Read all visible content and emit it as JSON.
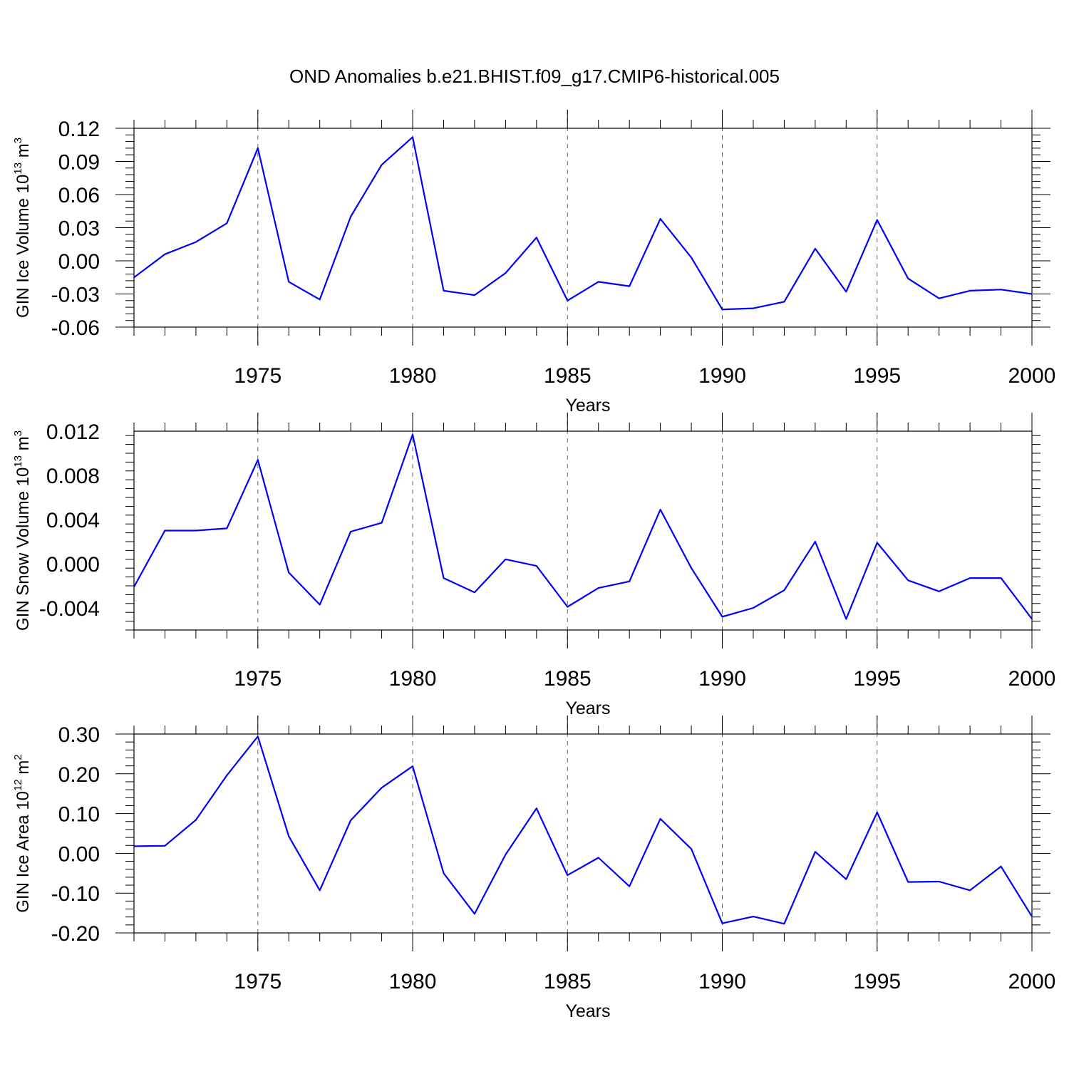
{
  "title": "OND Anomalies b.e21.BHIST.f09_g17.CMIP6-historical.005",
  "chart_data": [
    {
      "type": "line",
      "ylabel": {
        "text": "GIN Ice Volume 10",
        "exponent": "13",
        "unit": " m",
        "unit_exponent": "3"
      },
      "xlabel": "Years",
      "xlim": [
        1971,
        2000
      ],
      "ylim": [
        -0.06,
        0.12
      ],
      "yticks": [
        -0.06,
        -0.03,
        0.0,
        0.03,
        0.06,
        0.09,
        0.12
      ],
      "ytick_labels": [
        "-0.06",
        "-0.03",
        "0.00",
        "0.03",
        "0.06",
        "0.09",
        "0.12"
      ],
      "xticks": [
        1975,
        1980,
        1985,
        1990,
        1995,
        2000
      ],
      "xtick_labels": [
        "1975",
        "1980",
        "1985",
        "1990",
        "1995",
        "2000"
      ],
      "vgrid": [
        1975,
        1980,
        1985,
        1990,
        1995
      ],
      "color": "#0000ff",
      "x": [
        1971,
        1972,
        1973,
        1974,
        1975,
        1976,
        1977,
        1978,
        1979,
        1980,
        1981,
        1982,
        1983,
        1984,
        1985,
        1986,
        1987,
        1988,
        1989,
        1990,
        1991,
        1992,
        1993,
        1994,
        1995,
        1996,
        1997,
        1998,
        1999,
        2000
      ],
      "values": [
        -0.015,
        0.006,
        0.017,
        0.034,
        0.102,
        -0.019,
        -0.035,
        0.04,
        0.087,
        0.112,
        -0.027,
        -0.031,
        -0.011,
        0.021,
        -0.036,
        -0.019,
        -0.023,
        0.038,
        0.003,
        -0.044,
        -0.043,
        -0.037,
        0.011,
        -0.028,
        0.037,
        -0.016,
        -0.034,
        -0.027,
        -0.026,
        -0.03
      ]
    },
    {
      "type": "line",
      "ylabel": {
        "text": "GIN Snow Volume 10",
        "exponent": "13",
        "unit": " m",
        "unit_exponent": "3"
      },
      "xlabel": "Years",
      "xlim": [
        1971,
        2000
      ],
      "ylim": [
        -0.006,
        0.012
      ],
      "yticks": [
        -0.004,
        0.0,
        0.004,
        0.008,
        0.012
      ],
      "ytick_labels": [
        "-0.004",
        "0.000",
        "0.004",
        "0.008",
        "0.012"
      ],
      "xticks": [
        1975,
        1980,
        1985,
        1990,
        1995,
        2000
      ],
      "xtick_labels": [
        "1975",
        "1980",
        "1985",
        "1990",
        "1995",
        "2000"
      ],
      "vgrid": [
        1975,
        1980,
        1985,
        1990,
        1995
      ],
      "color": "#0000ff",
      "x": [
        1971,
        1972,
        1973,
        1974,
        1975,
        1976,
        1977,
        1978,
        1979,
        1980,
        1981,
        1982,
        1983,
        1984,
        1985,
        1986,
        1987,
        1988,
        1989,
        1990,
        1991,
        1992,
        1993,
        1994,
        1995,
        1996,
        1997,
        1998,
        1999,
        2000
      ],
      "values": [
        -0.0021,
        0.003,
        0.003,
        0.0032,
        0.0094,
        -0.0008,
        -0.0037,
        0.0029,
        0.0037,
        0.0117,
        -0.0013,
        -0.0026,
        0.0004,
        -0.0002,
        -0.0039,
        -0.0022,
        -0.0016,
        0.0049,
        -0.0004,
        -0.0048,
        -0.004,
        -0.0024,
        0.002,
        -0.005,
        0.0019,
        -0.0015,
        -0.0025,
        -0.0013,
        -0.0013,
        -0.005
      ]
    },
    {
      "type": "line",
      "ylabel": {
        "text": "GIN Ice Area 10",
        "exponent": "12",
        "unit": " m",
        "unit_exponent": "2"
      },
      "xlabel": "Years",
      "xlim": [
        1971,
        2000
      ],
      "ylim": [
        -0.2,
        0.3
      ],
      "yticks": [
        -0.2,
        -0.1,
        0.0,
        0.1,
        0.2,
        0.3
      ],
      "ytick_labels": [
        "-0.20",
        "-0.10",
        "0.00",
        "0.10",
        "0.20",
        "0.30"
      ],
      "xticks": [
        1975,
        1980,
        1985,
        1990,
        1995,
        2000
      ],
      "xtick_labels": [
        "1975",
        "1980",
        "1985",
        "1990",
        "1995",
        "2000"
      ],
      "vgrid": [
        1975,
        1980,
        1985,
        1990,
        1995
      ],
      "color": "#0000ff",
      "x": [
        1971,
        1972,
        1973,
        1974,
        1975,
        1976,
        1977,
        1978,
        1979,
        1980,
        1981,
        1982,
        1983,
        1984,
        1985,
        1986,
        1987,
        1988,
        1989,
        1990,
        1991,
        1992,
        1993,
        1994,
        1995,
        1996,
        1997,
        1998,
        1999,
        2000
      ],
      "values": [
        0.018,
        0.019,
        0.084,
        0.196,
        0.294,
        0.043,
        -0.093,
        0.083,
        0.165,
        0.219,
        -0.05,
        -0.152,
        -0.003,
        0.113,
        -0.055,
        -0.011,
        -0.083,
        0.087,
        0.011,
        -0.176,
        -0.159,
        -0.177,
        0.004,
        -0.065,
        0.103,
        -0.072,
        -0.071,
        -0.093,
        -0.033,
        -0.159
      ]
    }
  ]
}
